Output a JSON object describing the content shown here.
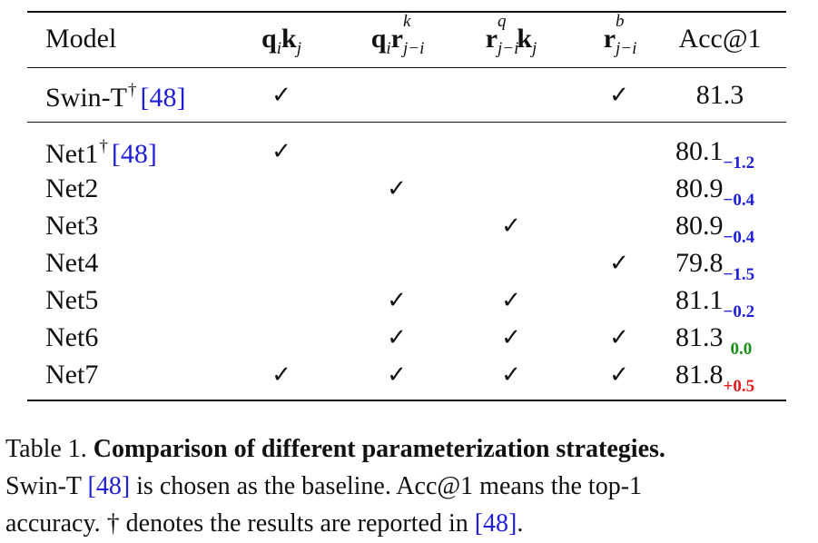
{
  "table": {
    "headers": {
      "model": "Model",
      "c1": {
        "a": "q",
        "a_sub": "i",
        "b": "k",
        "b_sub": "j"
      },
      "c2": {
        "a": "q",
        "a_sub": "i",
        "b": "r",
        "b_sup": "k",
        "b_sub": "j−i"
      },
      "c3": {
        "a": "r",
        "a_sup": "q",
        "a_sub": "j−i",
        "b": "k",
        "b_sub": "j"
      },
      "c4": {
        "a": "r",
        "a_sup": "b",
        "a_sub": "j−i"
      },
      "acc": "Acc@1"
    },
    "baseline": {
      "name": "Swin-T",
      "dagger": "†",
      "ref": "[48]",
      "c1": "✓",
      "c4": "✓",
      "acc": "81.3"
    },
    "rows": [
      {
        "name": "Net1",
        "dagger": "†",
        "ref": "[48]",
        "c1": "✓",
        "c2": "",
        "c3": "",
        "c4": "",
        "acc": "80.1",
        "delta": "−1.2"
      },
      {
        "name": "Net2",
        "c1": "",
        "c2": "✓",
        "c3": "",
        "c4": "",
        "acc": "80.9",
        "delta": "−0.4"
      },
      {
        "name": "Net3",
        "c1": "",
        "c2": "",
        "c3": "✓",
        "c4": "",
        "acc": "80.9",
        "delta": "−0.4"
      },
      {
        "name": "Net4",
        "c1": "",
        "c2": "",
        "c3": "",
        "c4": "✓",
        "acc": "79.8",
        "delta": "−1.5"
      },
      {
        "name": "Net5",
        "c1": "",
        "c2": "✓",
        "c3": "✓",
        "c4": "",
        "acc": "81.1",
        "delta": "−0.2"
      },
      {
        "name": "Net6",
        "c1": "",
        "c2": "✓",
        "c3": "✓",
        "c4": "✓",
        "acc": "81.3",
        "delta": "0.0"
      },
      {
        "name": "Net7",
        "c1": "✓",
        "c2": "✓",
        "c3": "✓",
        "c4": "✓",
        "acc": "81.8",
        "delta": "+0.5"
      }
    ]
  },
  "caption": {
    "label": "Table 1.",
    "title": "Comparison of different parameterization strategies.",
    "line2_a": "Swin-T",
    "ref1": "[48]",
    "line2_b": "is chosen as the baseline.  Acc@1 means the top-1",
    "line3_a": "accuracy. † denotes the results are reported in",
    "ref2": "[48]",
    "line3_b": "."
  },
  "colors": {
    "ref_blue": "#1f1fd9",
    "delta_negative": "#1f1fd9",
    "delta_zero": "#1a8f1a",
    "delta_positive": "#e21b1b"
  }
}
